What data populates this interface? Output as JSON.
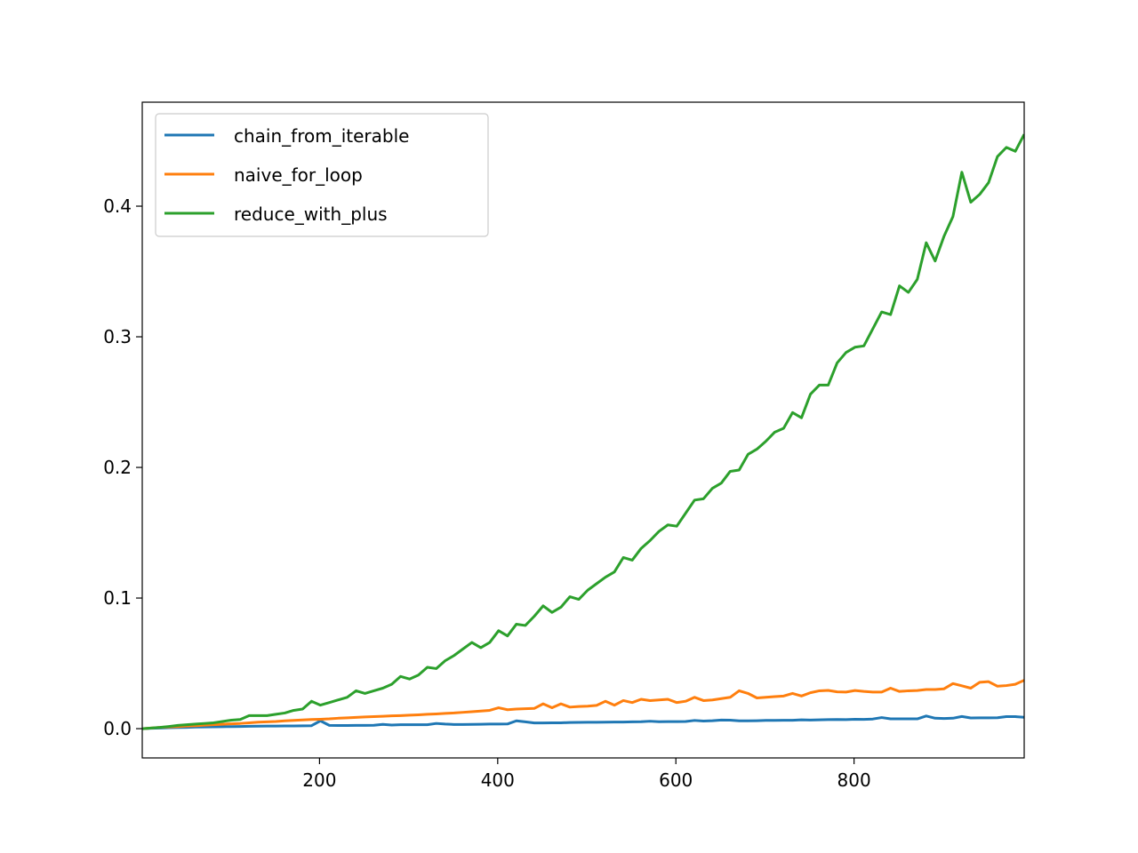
{
  "chart_data": {
    "type": "line",
    "x": [
      1,
      11,
      21,
      31,
      41,
      51,
      61,
      71,
      81,
      91,
      101,
      111,
      121,
      131,
      141,
      151,
      161,
      171,
      181,
      191,
      201,
      211,
      221,
      231,
      241,
      251,
      261,
      271,
      281,
      291,
      301,
      311,
      321,
      331,
      341,
      351,
      361,
      371,
      381,
      391,
      401,
      411,
      421,
      431,
      441,
      451,
      461,
      471,
      481,
      491,
      501,
      511,
      521,
      531,
      541,
      551,
      561,
      571,
      581,
      591,
      601,
      611,
      621,
      631,
      641,
      651,
      661,
      671,
      681,
      691,
      701,
      711,
      721,
      731,
      741,
      751,
      761,
      771,
      781,
      791,
      801,
      811,
      821,
      831,
      841,
      851,
      861,
      871,
      881,
      891,
      901,
      911,
      921,
      931,
      941,
      951,
      961,
      971,
      981,
      991
    ],
    "series": [
      {
        "name": "chain_from_iterable",
        "color": "#1f77b4",
        "values": [
          0,
          0.0003,
          0.0005,
          0.0007,
          0.0009,
          0.001,
          0.0012,
          0.0013,
          0.0014,
          0.0015,
          0.0016,
          0.0017,
          0.0018,
          0.0019,
          0.002,
          0.002,
          0.0021,
          0.0021,
          0.0022,
          0.0023,
          0.006,
          0.0025,
          0.0024,
          0.0024,
          0.0025,
          0.0025,
          0.0026,
          0.0033,
          0.0028,
          0.003,
          0.003,
          0.003,
          0.003,
          0.004,
          0.0035,
          0.0032,
          0.0032,
          0.0033,
          0.0034,
          0.0035,
          0.0035,
          0.0036,
          0.006,
          0.0052,
          0.0044,
          0.0044,
          0.0045,
          0.0045,
          0.0047,
          0.0048,
          0.0049,
          0.0049,
          0.005,
          0.0051,
          0.0051,
          0.0052,
          0.0053,
          0.0057,
          0.0053,
          0.0054,
          0.0054,
          0.0055,
          0.0063,
          0.0058,
          0.0061,
          0.0066,
          0.0065,
          0.006,
          0.006,
          0.0061,
          0.0063,
          0.0063,
          0.0064,
          0.0064,
          0.0068,
          0.0066,
          0.0068,
          0.0069,
          0.007,
          0.0069,
          0.0072,
          0.0071,
          0.0074,
          0.0085,
          0.0075,
          0.0075,
          0.0075,
          0.0075,
          0.0097,
          0.008,
          0.0078,
          0.008,
          0.0093,
          0.0082,
          0.0083,
          0.0083,
          0.0084,
          0.0092,
          0.0092,
          0.0087
        ]
      },
      {
        "name": "naive_for_loop",
        "color": "#ff7f0e",
        "values": [
          0,
          0.0005,
          0.001,
          0.0013,
          0.0016,
          0.002,
          0.0023,
          0.0027,
          0.003,
          0.0034,
          0.0037,
          0.004,
          0.0045,
          0.005,
          0.0052,
          0.0055,
          0.006,
          0.0063,
          0.0067,
          0.007,
          0.0072,
          0.0075,
          0.008,
          0.0083,
          0.0086,
          0.009,
          0.0092,
          0.0095,
          0.0098,
          0.01,
          0.0103,
          0.0106,
          0.011,
          0.0113,
          0.0117,
          0.012,
          0.0125,
          0.013,
          0.0135,
          0.014,
          0.016,
          0.0145,
          0.015,
          0.0153,
          0.0155,
          0.019,
          0.016,
          0.019,
          0.0165,
          0.017,
          0.0172,
          0.0178,
          0.021,
          0.018,
          0.0215,
          0.02,
          0.0225,
          0.0215,
          0.022,
          0.0225,
          0.02,
          0.021,
          0.024,
          0.0215,
          0.022,
          0.023,
          0.024,
          0.029,
          0.027,
          0.0235,
          0.024,
          0.0245,
          0.025,
          0.027,
          0.025,
          0.0275,
          0.029,
          0.0293,
          0.0282,
          0.028,
          0.0292,
          0.0285,
          0.028,
          0.028,
          0.031,
          0.0285,
          0.029,
          0.0292,
          0.03,
          0.03,
          0.0305,
          0.0345,
          0.0328,
          0.031,
          0.0355,
          0.036,
          0.0325,
          0.033,
          0.034,
          0.037
        ]
      },
      {
        "name": "reduce_with_plus",
        "color": "#2ca02c",
        "values": [
          0,
          0.0005,
          0.001,
          0.0017,
          0.0025,
          0.003,
          0.0035,
          0.004,
          0.0045,
          0.0055,
          0.0065,
          0.007,
          0.01,
          0.01,
          0.01,
          0.011,
          0.012,
          0.014,
          0.015,
          0.021,
          0.018,
          0.02,
          0.022,
          0.024,
          0.029,
          0.027,
          0.029,
          0.031,
          0.034,
          0.04,
          0.038,
          0.041,
          0.047,
          0.046,
          0.052,
          0.056,
          0.061,
          0.066,
          0.062,
          0.066,
          0.075,
          0.071,
          0.08,
          0.079,
          0.086,
          0.094,
          0.089,
          0.093,
          0.101,
          0.099,
          0.106,
          0.111,
          0.116,
          0.12,
          0.131,
          0.129,
          0.138,
          0.144,
          0.151,
          0.156,
          0.155,
          0.165,
          0.175,
          0.176,
          0.184,
          0.188,
          0.197,
          0.198,
          0.21,
          0.214,
          0.22,
          0.227,
          0.23,
          0.242,
          0.238,
          0.256,
          0.263,
          0.263,
          0.28,
          0.288,
          0.292,
          0.293,
          0.306,
          0.319,
          0.317,
          0.339,
          0.334,
          0.344,
          0.372,
          0.358,
          0.377,
          0.392,
          0.426,
          0.403,
          0.409,
          0.418,
          0.438,
          0.445,
          0.442,
          0.455
        ]
      }
    ],
    "xlim": [
      1,
      991
    ],
    "xticks": [
      200,
      400,
      600,
      800
    ],
    "ylim": [
      -0.0224,
      0.4796
    ],
    "yticks": [
      {
        "value": 0,
        "label": "0.0"
      },
      0.1,
      0.2,
      0.3,
      0.4
    ],
    "legend": "upper left"
  }
}
